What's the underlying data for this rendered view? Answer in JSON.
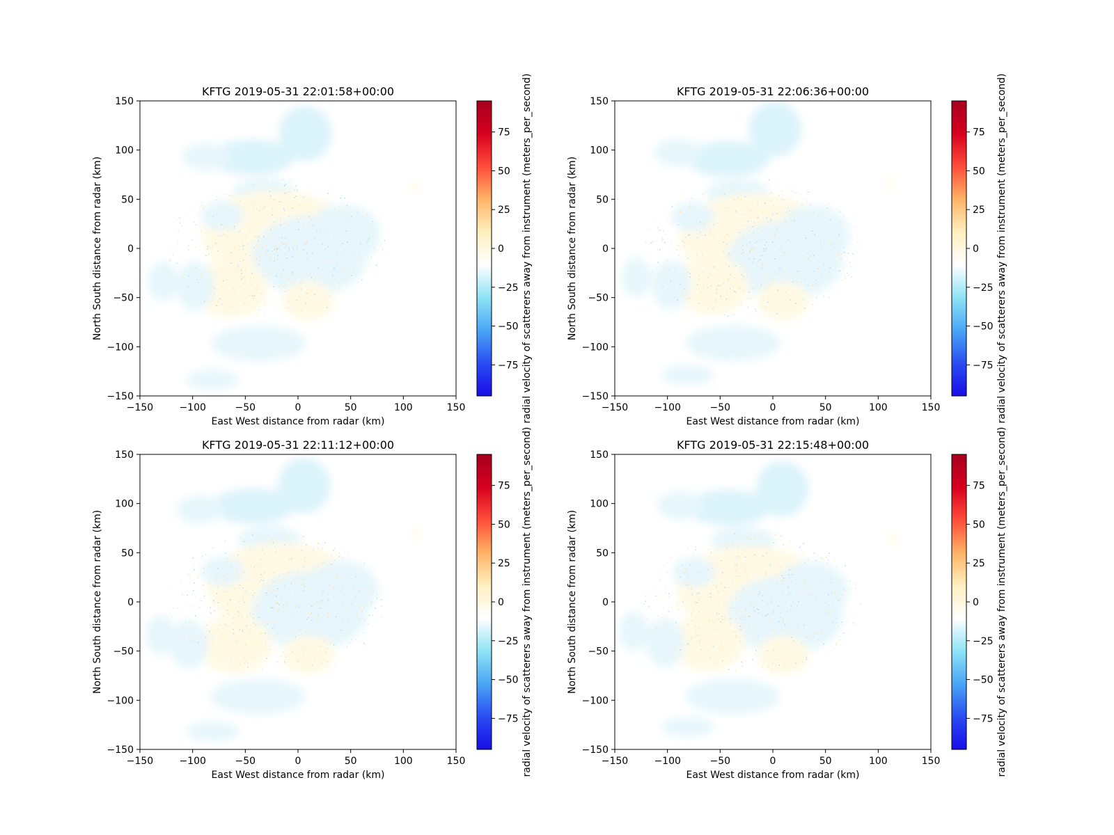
{
  "chart_data": [
    {
      "type": "heatmap",
      "title": "KFTG 2019-05-31 22:01:58+00:00",
      "xlabel": "East West distance from radar (km)",
      "ylabel": "North South distance from radar (km)",
      "xlim": [
        -150,
        150
      ],
      "ylim": [
        -150,
        150
      ],
      "xticks": [
        "−150",
        "−100",
        "−50",
        "0",
        "50",
        "100",
        "150"
      ],
      "yticks": [
        "150",
        "100",
        "50",
        "0",
        "−50",
        "−100",
        "−150"
      ],
      "colorbar": {
        "label": "radial velocity of scatterers away from instrument (meters_per_second)",
        "range": [
          -95,
          95
        ],
        "ticks": [
          "75",
          "50",
          "25",
          "0",
          "−25",
          "−50",
          "−75"
        ],
        "colormap": "pyart_BuDRd18"
      },
      "grid": false
    },
    {
      "type": "heatmap",
      "title": "KFTG 2019-05-31 22:06:36+00:00",
      "xlabel": "East West distance from radar (km)",
      "ylabel": "North South distance from radar (km)",
      "xlim": [
        -150,
        150
      ],
      "ylim": [
        -150,
        150
      ],
      "xticks": [
        "−150",
        "−100",
        "−50",
        "0",
        "50",
        "100",
        "150"
      ],
      "yticks": [
        "150",
        "100",
        "50",
        "0",
        "−50",
        "−100",
        "−150"
      ],
      "colorbar": {
        "label": "radial velocity of scatterers away from instrument (meters_per_second)",
        "range": [
          -95,
          95
        ],
        "ticks": [
          "75",
          "50",
          "25",
          "0",
          "−25",
          "−50",
          "−75"
        ],
        "colormap": "pyart_BuDRd18"
      },
      "grid": false
    },
    {
      "type": "heatmap",
      "title": "KFTG 2019-05-31 22:11:12+00:00",
      "xlabel": "East West distance from radar (km)",
      "ylabel": "North South distance from radar (km)",
      "xlim": [
        -150,
        150
      ],
      "ylim": [
        -150,
        150
      ],
      "xticks": [
        "−150",
        "−100",
        "−50",
        "0",
        "50",
        "100",
        "150"
      ],
      "yticks": [
        "150",
        "100",
        "50",
        "0",
        "−50",
        "−100",
        "−150"
      ],
      "colorbar": {
        "label": "radial velocity of scatterers away from instrument (meters_per_second)",
        "range": [
          -95,
          95
        ],
        "ticks": [
          "75",
          "50",
          "25",
          "0",
          "−25",
          "−50",
          "−75"
        ],
        "colormap": "pyart_BuDRd18"
      },
      "grid": false
    },
    {
      "type": "heatmap",
      "title": "KFTG 2019-05-31 22:15:48+00:00",
      "xlabel": "East West distance from radar (km)",
      "ylabel": "North South distance from radar (km)",
      "xlim": [
        -150,
        150
      ],
      "ylim": [
        -150,
        150
      ],
      "xticks": [
        "−150",
        "−100",
        "−50",
        "0",
        "50",
        "100",
        "150"
      ],
      "yticks": [
        "150",
        "100",
        "50",
        "0",
        "−50",
        "−100",
        "−150"
      ],
      "colorbar": {
        "label": "radial velocity of scatterers away from instrument (meters_per_second)",
        "range": [
          -95,
          95
        ],
        "ticks": [
          "75",
          "50",
          "25",
          "0",
          "−25",
          "−50",
          "−75"
        ],
        "colormap": "pyart_BuDRd18"
      },
      "grid": false
    }
  ],
  "colors": {
    "colorbar_stops": [
      "#1a0de8",
      "#2a4df2",
      "#4aa6f5",
      "#8fe3f5",
      "#ffffff",
      "#fff0bf",
      "#ffb366",
      "#ff4d3a",
      "#d7001f",
      "#a5001e"
    ],
    "echo_cyan": "#d8f2fb",
    "echo_light_blue": "#e4f6fc",
    "echo_yellow": "#fff9e2",
    "axes_edge": "#000000"
  }
}
